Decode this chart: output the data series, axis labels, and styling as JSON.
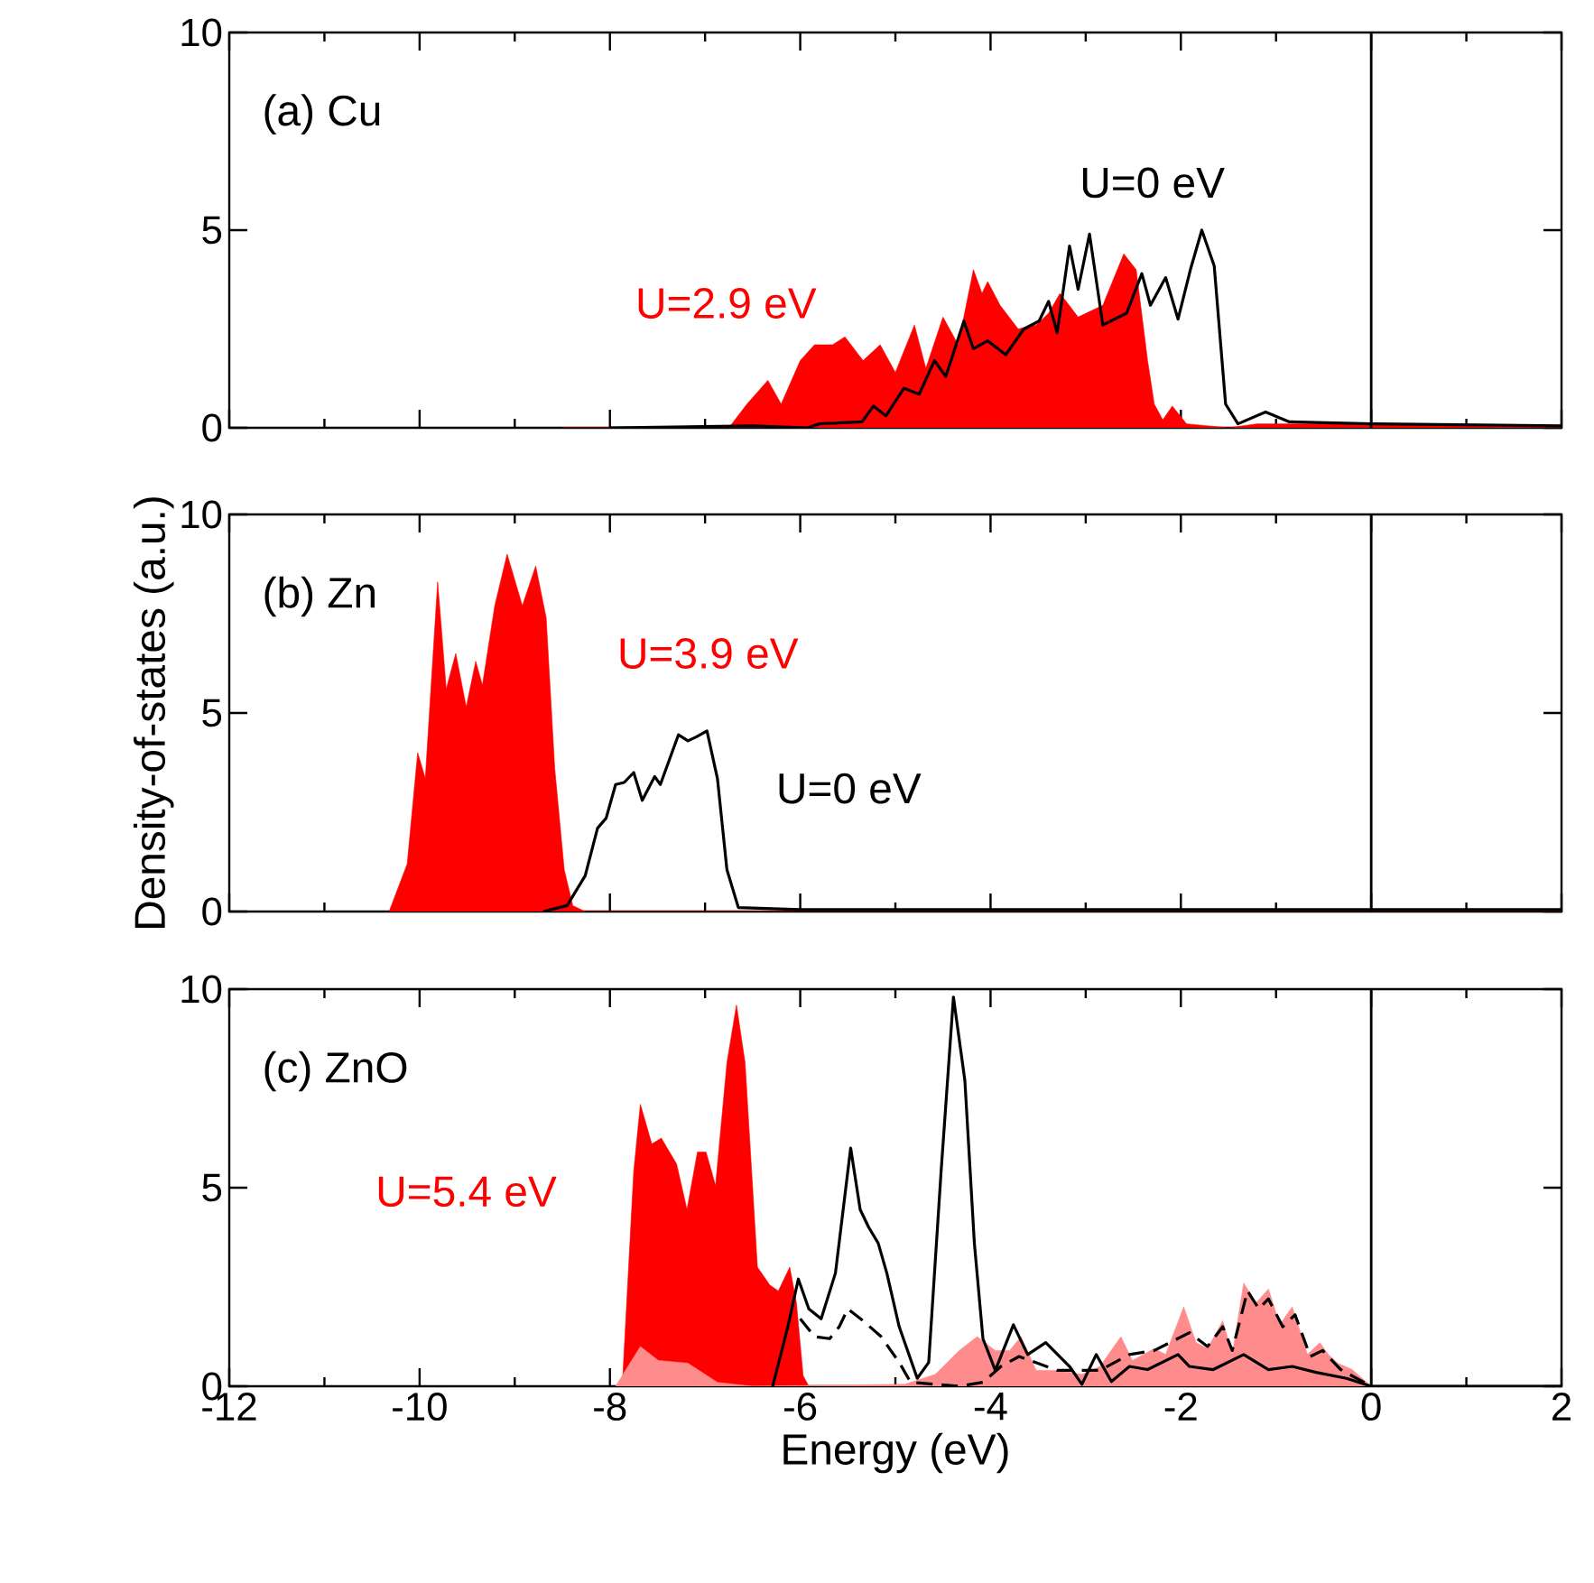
{
  "chart_data": [
    {
      "type": "area",
      "title": "(a) Cu",
      "xlim": [
        -12,
        2
      ],
      "ylim": [
        0,
        10
      ],
      "yticks": [
        0,
        5,
        10
      ],
      "tick_labels": "y",
      "xticks": [
        -12,
        {
          "value": -11,
          "label": null
        },
        -10,
        {
          "value": -9,
          "label": null
        },
        -8,
        {
          "value": -7,
          "label": null
        },
        -6,
        {
          "value": -5,
          "label": null
        },
        -4,
        {
          "value": -3,
          "label": null
        },
        -2,
        {
          "value": -1,
          "label": null
        },
        0,
        {
          "value": 1,
          "label": null
        },
        2
      ],
      "ref_lines": [
        {
          "axis": "x",
          "value": 0,
          "color": "#000000"
        }
      ],
      "series": [
        {
          "name": "U=2.9 eV",
          "color": "#ff0000",
          "x": [
            -8.5,
            -6.75,
            -6.56,
            -6.34,
            -6.2,
            -6.0,
            -5.85,
            -5.66,
            -5.53,
            -5.34,
            -5.16,
            -5.0,
            -4.8,
            -4.68,
            -4.5,
            -4.34,
            -4.18,
            -4.09,
            -4.03,
            -3.9,
            -3.71,
            -3.52,
            -3.39,
            -3.27,
            -3.08,
            -2.82,
            -2.6,
            -2.47,
            -2.35,
            -2.28,
            -2.19,
            -2.09,
            -1.94,
            -1.5,
            -1.2,
            -0.5,
            2
          ],
          "values": [
            0,
            0,
            0.6,
            1.2,
            0.6,
            1.7,
            2.1,
            2.1,
            2.3,
            1.7,
            2.1,
            1.4,
            2.6,
            1.5,
            2.8,
            2.1,
            4.0,
            3.4,
            3.7,
            3.1,
            2.5,
            2.6,
            2.9,
            3.4,
            2.8,
            3.1,
            4.4,
            4.0,
            1.7,
            0.6,
            0.2,
            0.55,
            0.1,
            0,
            0.1,
            0.1,
            0
          ]
        },
        {
          "name": "U=0 eV",
          "type": "line",
          "color": "#000000",
          "x": [
            -8,
            -6.5,
            -5.92,
            -5.8,
            -5.35,
            -5.23,
            -5.1,
            -4.91,
            -4.75,
            -4.59,
            -4.47,
            -4.28,
            -4.18,
            -4.03,
            -3.84,
            -3.65,
            -3.49,
            -3.39,
            -3.3,
            -3.17,
            -3.08,
            -2.96,
            -2.82,
            -2.57,
            -2.41,
            -2.32,
            -2.16,
            -2.03,
            -1.9,
            -1.78,
            -1.65,
            -1.53,
            -1.4,
            -1.11,
            -0.86,
            0,
            2
          ],
          "values": [
            0,
            0.05,
            0,
            0.1,
            0.15,
            0.55,
            0.3,
            1.0,
            0.85,
            1.7,
            1.3,
            2.7,
            2.0,
            2.2,
            1.85,
            2.5,
            2.7,
            3.2,
            2.4,
            4.6,
            3.5,
            4.9,
            2.6,
            2.9,
            3.9,
            3.1,
            3.8,
            2.75,
            4.0,
            5.0,
            4.1,
            0.6,
            0.1,
            0.4,
            0.15,
            0.1,
            0.05
          ]
        }
      ]
    },
    {
      "type": "area",
      "title": "(b) Zn",
      "ylabel": "Density-of-states (a.u.)",
      "xlim": [
        -12,
        2
      ],
      "ylim": [
        0,
        10
      ],
      "yticks": [
        0,
        5,
        10
      ],
      "tick_labels": "y",
      "xticks": [
        -12,
        {
          "value": -11,
          "label": null
        },
        -10,
        {
          "value": -9,
          "label": null
        },
        -8,
        {
          "value": -7,
          "label": null
        },
        -6,
        {
          "value": -5,
          "label": null
        },
        -4,
        {
          "value": -3,
          "label": null
        },
        -2,
        {
          "value": -1,
          "label": null
        },
        0,
        {
          "value": 1,
          "label": null
        },
        2
      ],
      "ref_lines": [
        {
          "axis": "x",
          "value": 0,
          "color": "#000000"
        }
      ],
      "series": [
        {
          "name": "U=3.9 eV",
          "color": "#ff0000",
          "x": [
            -10.32,
            -10.13,
            -10.02,
            -9.94,
            -9.81,
            -9.72,
            -9.62,
            -9.51,
            -9.41,
            -9.34,
            -9.21,
            -9.08,
            -8.92,
            -8.78,
            -8.67,
            -8.58,
            -8.48,
            -8.39,
            -8.26,
            2
          ],
          "values": [
            0,
            1.2,
            4.0,
            3.35,
            8.3,
            5.6,
            6.5,
            5.15,
            6.3,
            5.7,
            7.7,
            9.0,
            7.7,
            8.7,
            7.4,
            3.6,
            1.05,
            0.15,
            0,
            0
          ]
        },
        {
          "name": "U=0 eV",
          "type": "line",
          "color": "#000000",
          "x": [
            -8.7,
            -8.45,
            -8.26,
            -8.13,
            -8.04,
            -7.94,
            -7.85,
            -7.75,
            -7.66,
            -7.53,
            -7.47,
            -7.28,
            -7.18,
            -7.09,
            -6.98,
            -6.87,
            -6.77,
            -6.65,
            -6.0,
            2
          ],
          "values": [
            0,
            0.15,
            0.9,
            2.1,
            2.35,
            3.2,
            3.25,
            3.5,
            2.8,
            3.4,
            3.2,
            4.45,
            4.3,
            4.4,
            4.55,
            3.35,
            1.05,
            0.1,
            0.05,
            0.05
          ]
        }
      ]
    },
    {
      "type": "area",
      "title": "(c) ZnO",
      "xlabel": "Energy (eV)",
      "xlim": [
        -12,
        2
      ],
      "ylim": [
        0,
        10
      ],
      "yticks": [
        0,
        5,
        10
      ],
      "xticks": [
        -12,
        {
          "value": -11,
          "label": null
        },
        -10,
        {
          "value": -9,
          "label": null
        },
        -8,
        {
          "value": -7,
          "label": null
        },
        -6,
        {
          "value": -5,
          "label": null
        },
        -4,
        {
          "value": -3,
          "label": null
        },
        -2,
        {
          "value": -1,
          "label": null
        },
        0,
        {
          "value": 1,
          "label": null
        },
        2
      ],
      "ref_lines": [
        {
          "axis": "x",
          "value": 0,
          "color": "#000000"
        }
      ],
      "series": [
        {
          "name": "U=5.4 eV",
          "color": "#ff0000",
          "x": [
            -7.94,
            -7.87,
            -7.75,
            -7.68,
            -7.56,
            -7.46,
            -7.3,
            -7.19,
            -7.08,
            -6.99,
            -6.89,
            -6.77,
            -6.67,
            -6.58,
            -6.45,
            -6.32,
            -6.23,
            -6.11,
            -6.04,
            -5.97,
            -5.91
          ],
          "values": [
            0,
            0,
            5.4,
            7.1,
            6.1,
            6.25,
            5.6,
            4.45,
            5.9,
            5.9,
            5.05,
            8.15,
            9.6,
            8.15,
            3.0,
            2.55,
            2.4,
            3.0,
            2.1,
            0.27,
            0
          ]
        },
        {
          "color": "#ff8c8c",
          "x": [
            -7.94,
            -7.68,
            -7.49,
            -7.18,
            -6.87,
            -6.5,
            -4.9,
            -4.58,
            -4.33,
            -4.14,
            -3.95,
            -3.8,
            -3.68,
            -3.52,
            -3.3,
            -3.04,
            -2.85,
            -2.63,
            -2.51,
            -2.28,
            -2.16,
            -1.97,
            -1.84,
            -1.72,
            -1.56,
            -1.46,
            -1.34,
            -1.21,
            -1.08,
            -0.96,
            -0.83,
            -0.67,
            -0.54,
            -0.45,
            -0.35,
            -0.2,
            0
          ],
          "values": [
            0,
            1.0,
            0.65,
            0.58,
            0.1,
            0,
            0.05,
            0.3,
            0.9,
            1.25,
            0.9,
            0.9,
            1.25,
            0.4,
            0.4,
            0.3,
            0.5,
            1.25,
            0.65,
            0.95,
            0.8,
            2.0,
            1.1,
            0.95,
            1.65,
            0.8,
            2.6,
            2.1,
            2.45,
            1.55,
            2.0,
            0.8,
            1.1,
            0.8,
            0.58,
            0.42,
            0
          ]
        },
        {
          "type": "line",
          "color": "#000000",
          "x": [
            -6.29,
            -6.13,
            -6.02,
            -5.91,
            -5.78,
            -5.63,
            -5.47,
            -5.37,
            -5.28,
            -5.18,
            -5.09,
            -4.96,
            -4.77,
            -4.65,
            -4.52,
            -4.39,
            -4.27,
            -4.17,
            -4.08,
            -3.95,
            -3.76,
            -3.61,
            -3.42,
            -3.17,
            -3.04,
            -2.89,
            -2.73,
            -2.54,
            -2.35,
            -2.03,
            -1.91,
            -1.66,
            -1.34,
            -1.08,
            -0.83,
            -0.58,
            -0.26,
            0,
            2
          ],
          "values": [
            0,
            1.5,
            2.7,
            1.95,
            1.7,
            2.85,
            6.0,
            4.45,
            4.0,
            3.6,
            2.85,
            1.5,
            0.2,
            0.6,
            5.4,
            9.8,
            7.7,
            3.6,
            1.2,
            0.4,
            1.55,
            0.8,
            1.1,
            0.5,
            0.05,
            0.8,
            0.12,
            0.5,
            0.42,
            0.8,
            0.5,
            0.42,
            0.8,
            0.42,
            0.5,
            0.35,
            0.2,
            0,
            0
          ]
        },
        {
          "type": "line",
          "line_style": "dashed",
          "color": "#000000",
          "x": [
            -6.0,
            -5.85,
            -5.69,
            -5.59,
            -5.5,
            -5.34,
            -5.15,
            -4.96,
            -4.84,
            -4.33,
            -4.08,
            -3.89,
            -3.7,
            -3.3,
            -2.85,
            -2.54,
            -2.28,
            -1.91,
            -1.72,
            -1.56,
            -1.46,
            -1.3,
            -1.18,
            -1.08,
            -0.93,
            -0.8,
            -0.64,
            -0.51,
            -0.32,
            0
          ],
          "values": [
            1.7,
            1.25,
            1.2,
            1.5,
            1.95,
            1.65,
            1.25,
            0.6,
            0.1,
            0,
            0.1,
            0.5,
            0.75,
            0.4,
            0.4,
            0.8,
            0.9,
            1.35,
            1.0,
            1.5,
            0.9,
            2.4,
            1.95,
            2.2,
            1.5,
            1.8,
            0.75,
            0.9,
            0.42,
            0
          ]
        }
      ]
    }
  ]
}
